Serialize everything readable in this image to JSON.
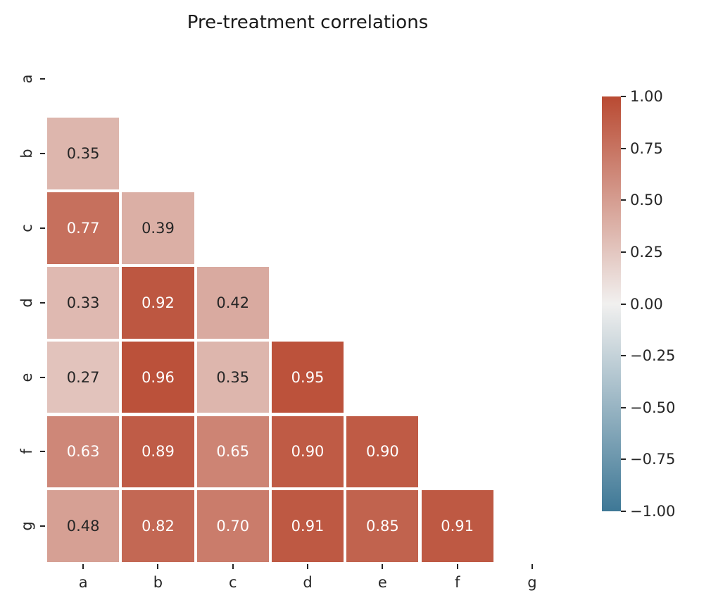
{
  "chart_data": {
    "type": "heatmap",
    "title": "Pre-treatment correlations",
    "categories": [
      "a",
      "b",
      "c",
      "d",
      "e",
      "f",
      "g"
    ],
    "matrix": [
      [
        null,
        null,
        null,
        null,
        null,
        null,
        null
      ],
      [
        0.35,
        null,
        null,
        null,
        null,
        null,
        null
      ],
      [
        0.77,
        0.39,
        null,
        null,
        null,
        null,
        null
      ],
      [
        0.33,
        0.92,
        0.42,
        null,
        null,
        null,
        null
      ],
      [
        0.27,
        0.96,
        0.35,
        0.95,
        null,
        null,
        null
      ],
      [
        0.63,
        0.89,
        0.65,
        0.9,
        0.9,
        null,
        null
      ],
      [
        0.48,
        0.82,
        0.7,
        0.91,
        0.85,
        0.91,
        null
      ]
    ],
    "value_format_decimals": 2,
    "vmin": -1,
    "vmax": 1,
    "mask": "upper-triangle-and-diagonal",
    "grid_line_color": "#ffffff",
    "colormap": {
      "negative_end": "#3e7896",
      "midpoint": "#f1f0ef",
      "positive_end": "#b94a32"
    },
    "annotation_colors": {
      "on_light_cell": "#262626",
      "on_dark_cell": "#ffffff"
    },
    "colorbar": {
      "position": "right",
      "tick_labels": [
        "1.00",
        "0.75",
        "0.50",
        "0.25",
        "0.00",
        "−0.25",
        "−0.50",
        "−0.75",
        "−1.00"
      ]
    }
  }
}
